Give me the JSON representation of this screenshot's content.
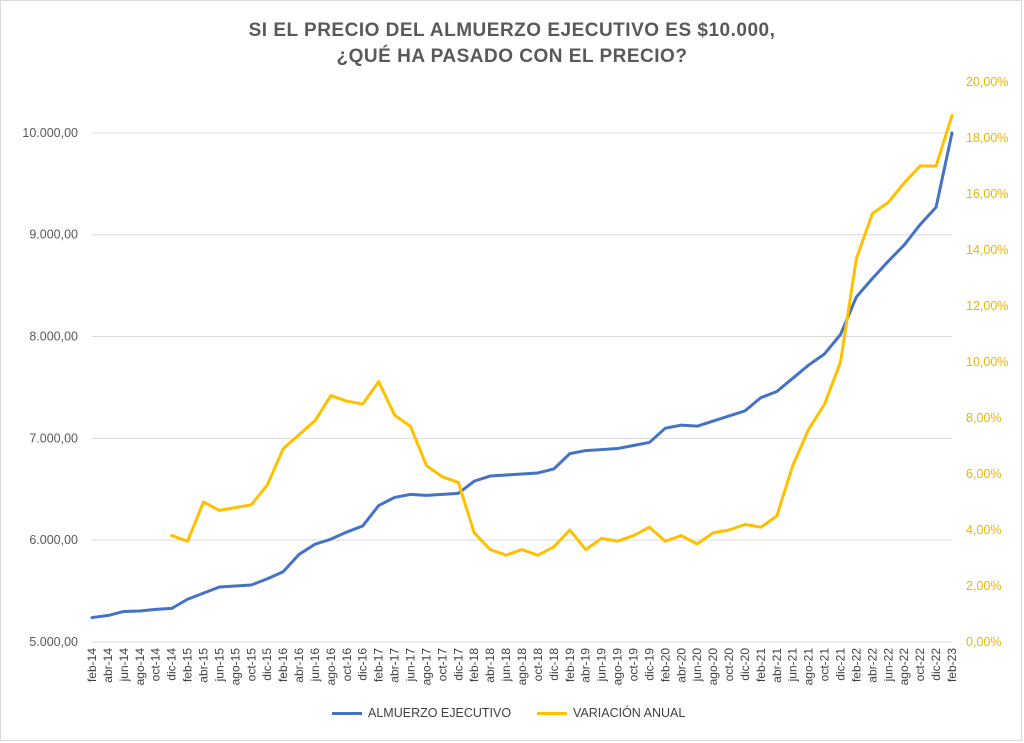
{
  "chart_data": {
    "type": "line",
    "title": "SI EL PRECIO DEL ALMUERZO EJECUTIVO ES $10.000,",
    "subtitle": "¿QUÉ HA PASADO CON EL PRECIO?",
    "x": [
      "feb-14",
      "abr-14",
      "jun-14",
      "ago-14",
      "oct-14",
      "dic-14",
      "feb-15",
      "abr-15",
      "jun-15",
      "ago-15",
      "oct-15",
      "dic-15",
      "feb-16",
      "abr-16",
      "jun-16",
      "ago-16",
      "oct-16",
      "dic-16",
      "feb-17",
      "abr-17",
      "jun-17",
      "ago-17",
      "oct-17",
      "dic-17",
      "feb-18",
      "abr-18",
      "jun-18",
      "ago-18",
      "oct-18",
      "dic-18",
      "feb-19",
      "abr-19",
      "jun-19",
      "ago-19",
      "oct-19",
      "dic-19",
      "feb-20",
      "abr-20",
      "jun-20",
      "ago-20",
      "oct-20",
      "dic-20",
      "feb-21",
      "abr-21",
      "jun-21",
      "ago-21",
      "oct-21",
      "dic-21",
      "feb-22",
      "abr-22",
      "jun-22",
      "ago-22",
      "oct-22",
      "dic-22",
      "feb-23"
    ],
    "y_left": {
      "ylim": [
        5000,
        10500
      ],
      "ticks": [
        "5.000,00",
        "6.000,00",
        "7.000,00",
        "8.000,00",
        "9.000,00",
        "10.000,00"
      ]
    },
    "y_right": {
      "ylim": [
        0,
        0.2
      ],
      "ticks": [
        "0,00%",
        "2,00%",
        "4,00%",
        "6,00%",
        "8,00%",
        "10,00%",
        "12,00%",
        "14,00%",
        "16,00%",
        "18,00%",
        "20,00%"
      ]
    },
    "grid": true,
    "legend_position": "bottom",
    "series": [
      {
        "name": "ALMUERZO EJECUTIVO",
        "axis": "left",
        "color": "#4472c4",
        "values": [
          5240,
          5260,
          5300,
          5305,
          5320,
          5330,
          5420,
          5480,
          5540,
          5550,
          5560,
          5620,
          5690,
          5860,
          5960,
          6010,
          6080,
          6140,
          6340,
          6420,
          6450,
          6440,
          6450,
          6460,
          6580,
          6630,
          6640,
          6650,
          6660,
          6700,
          6850,
          6880,
          6890,
          6900,
          6930,
          6960,
          7100,
          7130,
          7120,
          7170,
          7220,
          7270,
          7400,
          7460,
          7590,
          7720,
          7830,
          8020,
          8390,
          8570,
          8740,
          8900,
          9100,
          9270,
          10000
        ]
      },
      {
        "name": "VARIACIÓN ANUAL",
        "axis": "right",
        "color": "#ffc000",
        "start_x": "dic-14",
        "values": [
          null,
          null,
          null,
          null,
          null,
          0.038,
          0.036,
          0.05,
          0.047,
          0.048,
          0.049,
          0.056,
          0.069,
          0.074,
          0.079,
          0.088,
          0.086,
          0.085,
          0.093,
          0.081,
          0.077,
          0.063,
          0.059,
          0.057,
          0.039,
          0.033,
          0.031,
          0.033,
          0.031,
          0.034,
          0.04,
          0.033,
          0.037,
          0.036,
          0.038,
          0.041,
          0.036,
          0.038,
          0.035,
          0.039,
          0.04,
          0.042,
          0.041,
          0.045,
          0.063,
          0.076,
          0.085,
          0.1,
          0.137,
          0.153,
          0.157,
          0.164,
          0.17,
          0.17,
          0.188
        ]
      }
    ]
  }
}
